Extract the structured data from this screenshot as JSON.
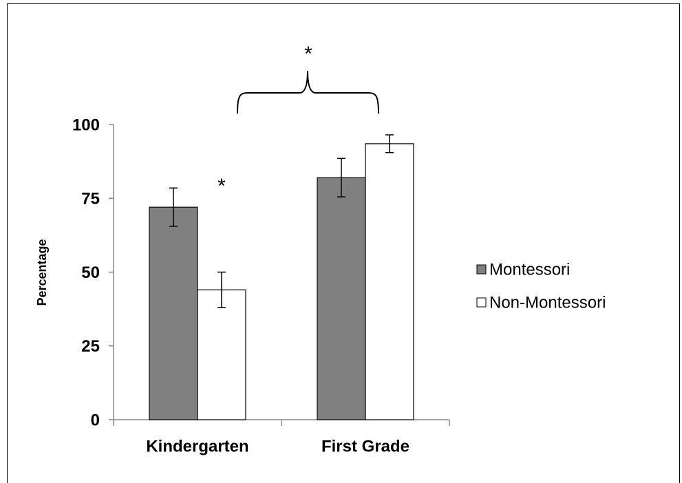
{
  "chart_data": {
    "type": "bar",
    "y_label": "Percentage",
    "categories": [
      "Kindergarten",
      "First Grade"
    ],
    "series": [
      {
        "name": "Montessori",
        "color": "#808080",
        "values": [
          72,
          82
        ],
        "errors": [
          6.5,
          6.5
        ]
      },
      {
        "name": "Non-Montessori",
        "color": "#ffffff",
        "values": [
          44,
          93.5
        ],
        "errors": [
          6,
          3
        ]
      }
    ],
    "ylim": [
      0,
      100
    ],
    "yticks": [
      0,
      25,
      50,
      75,
      100
    ],
    "annotations": [
      "*",
      "*"
    ],
    "legend": "right"
  }
}
